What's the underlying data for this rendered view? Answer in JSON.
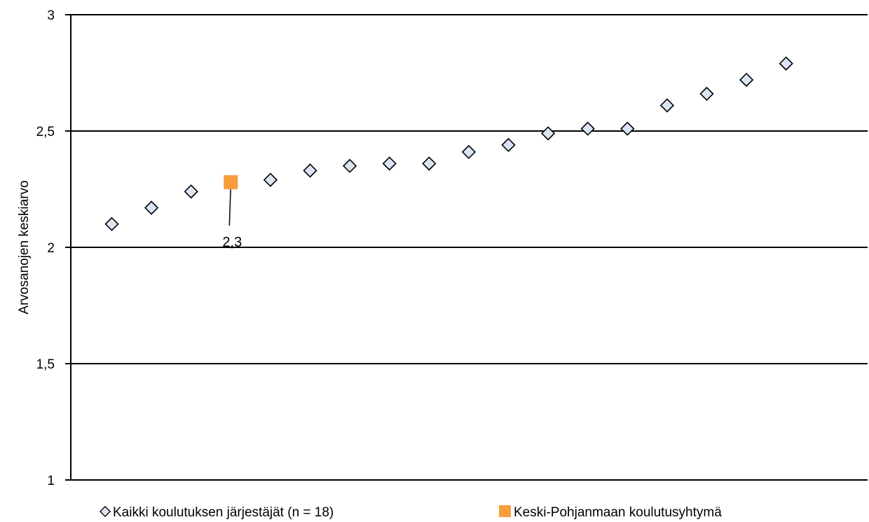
{
  "chart_data": {
    "type": "scatter",
    "title": "",
    "xlabel": "",
    "ylabel": "Arvosanojen keskiarvo",
    "ylim": [
      1,
      3
    ],
    "yticks": [
      1,
      1.5,
      2,
      2.5,
      3
    ],
    "ytick_labels": [
      "1",
      "1,5",
      "2",
      "2,5",
      "3"
    ],
    "grid": true,
    "legend_position": "bottom",
    "series": [
      {
        "name": "Kaikki koulutuksen järjestäjät (n = 18)",
        "marker": "diamond",
        "color": "#dbe4f3",
        "stroke": "#000000",
        "x": [
          1,
          2,
          3,
          5,
          6,
          7,
          8,
          9,
          10,
          11,
          12,
          13,
          14,
          15,
          16,
          17,
          18
        ],
        "y": [
          2.1,
          2.17,
          2.24,
          2.29,
          2.33,
          2.35,
          2.36,
          2.36,
          2.41,
          2.44,
          2.49,
          2.51,
          2.51,
          2.61,
          2.66,
          2.72,
          2.79
        ]
      },
      {
        "name": "Keski-Pohjanmaan koulutusyhtymä",
        "marker": "square",
        "color": "#f79d3c",
        "x": [
          4
        ],
        "y": [
          2.28
        ],
        "data_label": "2,3"
      }
    ]
  }
}
